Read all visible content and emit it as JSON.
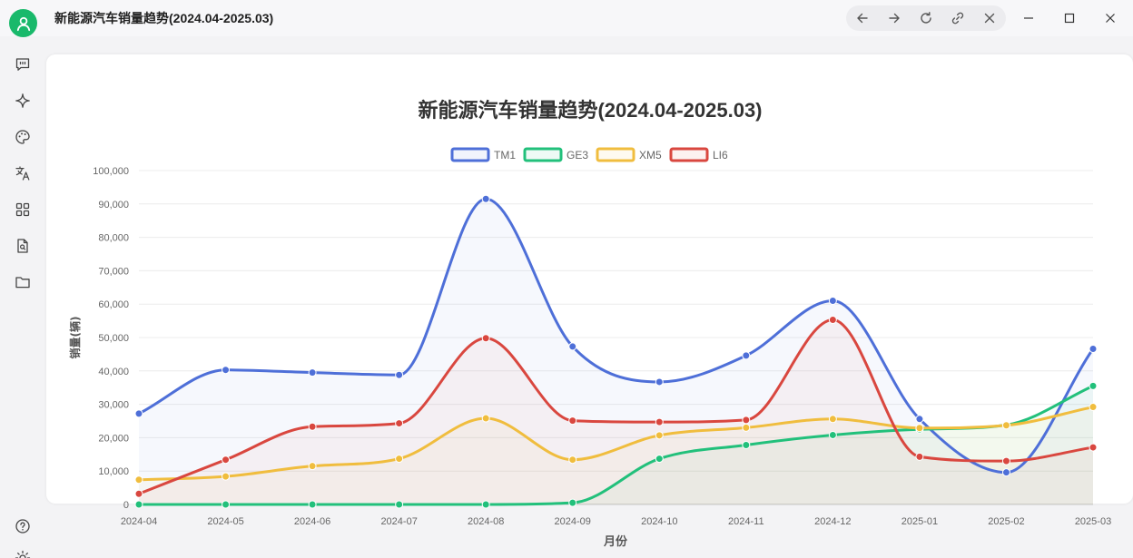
{
  "window": {
    "title": "新能源汽车销量趋势(2024.04-2025.03)"
  },
  "toolbar": {
    "nav_icons": [
      "arrow-left-icon",
      "arrow-right-icon",
      "refresh-icon",
      "link-icon",
      "close-icon"
    ],
    "window_icons": [
      "minimize-icon",
      "maximize-icon",
      "window-close-icon"
    ]
  },
  "sidebar": {
    "icons": [
      "chat-icon",
      "sparkle-icon",
      "palette-icon",
      "translate-icon",
      "grid-icon",
      "document-search-icon",
      "folder-icon",
      "help-icon",
      "sun-icon"
    ]
  },
  "colors": {
    "accent": "#19b96b",
    "TM1": "#4e6fd8",
    "GE3": "#22c07b",
    "XM5": "#f0bd3e",
    "LI6": "#d9473f"
  },
  "chart_data": {
    "type": "line",
    "title": "新能源汽车销量趋势(2024.04-2025.03)",
    "xlabel": "月份",
    "ylabel": "销量(辆)",
    "categories": [
      "2024-04",
      "2024-05",
      "2024-06",
      "2024-07",
      "2024-08",
      "2024-09",
      "2024-10",
      "2024-11",
      "2024-12",
      "2025-01",
      "2025-02",
      "2025-03"
    ],
    "ylim": [
      0,
      100000
    ],
    "yticks": [
      0,
      10000,
      20000,
      30000,
      40000,
      50000,
      60000,
      70000,
      80000,
      90000,
      100000
    ],
    "ytick_labels": [
      "0",
      "10,000",
      "20,000",
      "30,000",
      "40,000",
      "50,000",
      "60,000",
      "70,000",
      "80,000",
      "90,000",
      "100,000"
    ],
    "grid": true,
    "legend": "top",
    "smooth": true,
    "filled": true,
    "series": [
      {
        "name": "TM1",
        "values": [
          27200,
          40300,
          39500,
          38800,
          91500,
          47300,
          36700,
          44600,
          61000,
          25600,
          9600,
          46600
        ]
      },
      {
        "name": "GE3",
        "values": [
          0,
          0,
          0,
          0,
          0,
          500,
          13700,
          17800,
          20800,
          22500,
          23800,
          35500
        ]
      },
      {
        "name": "XM5",
        "values": [
          7400,
          8400,
          11500,
          13700,
          25800,
          13400,
          20700,
          23000,
          25600,
          22900,
          23700,
          29200
        ]
      },
      {
        "name": "LI6",
        "values": [
          3200,
          13400,
          23300,
          24300,
          49800,
          25100,
          24700,
          25300,
          55300,
          14300,
          13000,
          17100
        ]
      }
    ]
  }
}
